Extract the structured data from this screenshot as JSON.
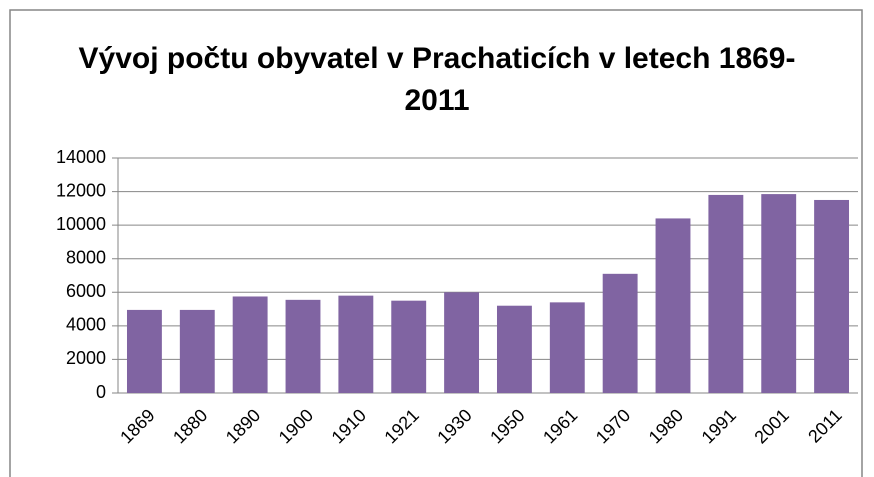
{
  "chart_data": {
    "type": "bar",
    "title": "Vývoj počtu obyvatel v Prachaticích  v letech 1869-2011",
    "categories": [
      "1869",
      "1880",
      "1890",
      "1900",
      "1910",
      "1921",
      "1930",
      "1950",
      "1961",
      "1970",
      "1980",
      "1991",
      "2001",
      "2011"
    ],
    "values": [
      4950,
      4950,
      5750,
      5550,
      5800,
      5500,
      6000,
      5200,
      5400,
      7100,
      10400,
      11800,
      11850,
      11500
    ],
    "color": "#8064a2",
    "ylim": [
      0,
      14000
    ],
    "yticks": [
      0,
      2000,
      4000,
      6000,
      8000,
      10000,
      12000,
      14000
    ],
    "grid": true
  }
}
